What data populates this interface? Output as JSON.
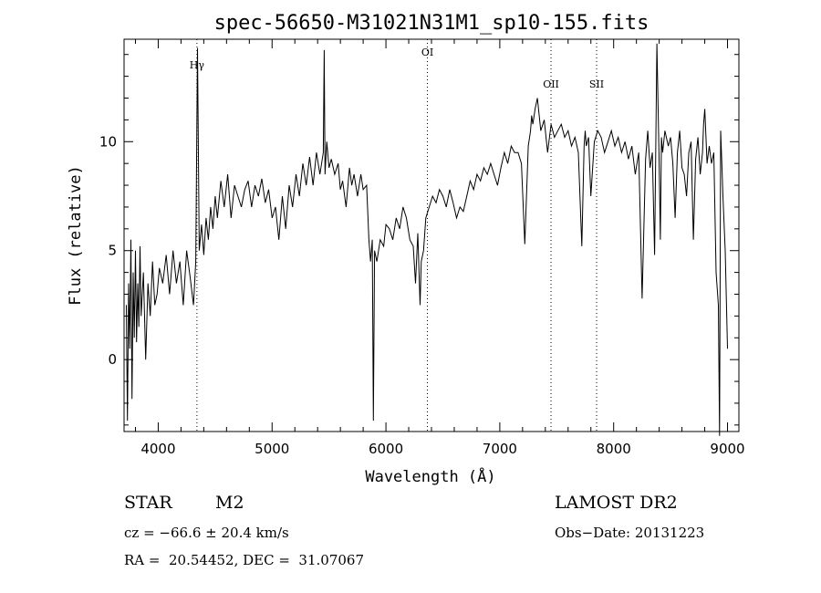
{
  "chart_data": {
    "type": "line",
    "title": "spec-56650-M31021N31M1_sp10-155.fits",
    "xlabel": "Wavelength (Å)",
    "ylabel": "Flux (relative)",
    "xlim": [
      3700,
      9100
    ],
    "ylim": [
      -3.3,
      14.7
    ],
    "xticks": [
      4000,
      5000,
      6000,
      7000,
      8000,
      9000
    ],
    "yticks": [
      0,
      5,
      10
    ],
    "grid": false,
    "line_color": "#000000",
    "lines": [
      {
        "name": "Hγ",
        "x": 4340
      },
      {
        "name": "OI",
        "x": 6364
      },
      {
        "name": "OII",
        "x": 7450
      },
      {
        "name": "SII",
        "x": 7850
      }
    ],
    "series": [
      {
        "x": [
          3720,
          3730,
          3740,
          3750,
          3760,
          3770,
          3780,
          3790,
          3800,
          3810,
          3820,
          3830,
          3840,
          3850,
          3870,
          3890,
          3910,
          3930,
          3950,
          3970,
          3990,
          4010,
          4040,
          4070,
          4100,
          4130,
          4160,
          4190,
          4220,
          4250,
          4280,
          4310,
          4330,
          4345,
          4360,
          4380,
          4400,
          4420,
          4440,
          4460,
          4480,
          4500,
          4520,
          4550,
          4580,
          4610,
          4640,
          4670,
          4700,
          4730,
          4760,
          4790,
          4820,
          4850,
          4880,
          4910,
          4940,
          4970,
          5000,
          5030,
          5060,
          5090,
          5120,
          5150,
          5180,
          5210,
          5240,
          5270,
          5300,
          5330,
          5360,
          5390,
          5420,
          5450,
          5458,
          5465,
          5480,
          5500,
          5520,
          5550,
          5580,
          5600,
          5620,
          5650,
          5680,
          5700,
          5720,
          5750,
          5780,
          5800,
          5830,
          5850,
          5865,
          5880,
          5890,
          5900,
          5920,
          5950,
          5980,
          6000,
          6030,
          6060,
          6090,
          6120,
          6150,
          6180,
          6210,
          6240,
          6260,
          6280,
          6300,
          6310,
          6330,
          6350,
          6380,
          6410,
          6440,
          6470,
          6500,
          6530,
          6560,
          6590,
          6620,
          6650,
          6680,
          6710,
          6740,
          6770,
          6800,
          6830,
          6860,
          6890,
          6920,
          6950,
          6980,
          7010,
          7040,
          7070,
          7100,
          7130,
          7160,
          7190,
          7220,
          7250,
          7270,
          7280,
          7290,
          7310,
          7330,
          7360,
          7390,
          7420,
          7450,
          7480,
          7510,
          7540,
          7570,
          7600,
          7630,
          7660,
          7690,
          7720,
          7740,
          7750,
          7760,
          7780,
          7800,
          7830,
          7860,
          7890,
          7920,
          7950,
          7980,
          8010,
          8040,
          8070,
          8100,
          8130,
          8160,
          8190,
          8220,
          8250,
          8280,
          8300,
          8320,
          8340,
          8360,
          8380,
          8400,
          8410,
          8420,
          8430,
          8450,
          8480,
          8500,
          8520,
          8540,
          8560,
          8580,
          8600,
          8620,
          8640,
          8660,
          8680,
          8700,
          8720,
          8740,
          8760,
          8780,
          8790,
          8800,
          8820,
          8840,
          8860,
          8880,
          8900,
          8920,
          8930,
          8940,
          8950,
          8960,
          8980,
          9000
        ],
        "y": [
          2.5,
          -2.8,
          3.5,
          0.5,
          5.5,
          -1.8,
          4.0,
          1.0,
          5.0,
          0.8,
          3.5,
          1.5,
          5.2,
          2.0,
          4.0,
          0.0,
          3.5,
          2.0,
          4.5,
          2.5,
          3.0,
          4.2,
          3.5,
          4.8,
          3.0,
          5.0,
          3.5,
          4.5,
          2.5,
          5.0,
          3.8,
          2.5,
          4.5,
          14.3,
          5.0,
          6.2,
          4.8,
          6.5,
          5.5,
          7.0,
          6.0,
          7.5,
          6.5,
          8.2,
          7.0,
          8.5,
          6.5,
          8.0,
          7.5,
          7.0,
          7.8,
          8.2,
          7.0,
          8.0,
          7.5,
          8.3,
          7.2,
          7.8,
          6.5,
          7.0,
          5.5,
          7.5,
          6.0,
          8.0,
          7.0,
          8.5,
          7.5,
          9.0,
          8.0,
          9.3,
          8.0,
          9.5,
          8.5,
          9.5,
          14.2,
          8.5,
          10.0,
          8.8,
          9.2,
          8.5,
          9.0,
          7.8,
          8.2,
          7.0,
          8.8,
          8.0,
          8.5,
          7.5,
          8.5,
          7.8,
          8.0,
          5.5,
          4.5,
          5.5,
          -2.8,
          5.0,
          4.5,
          5.5,
          5.2,
          6.2,
          6.0,
          5.5,
          6.5,
          6.0,
          7.0,
          6.5,
          5.5,
          5.2,
          3.5,
          5.8,
          2.5,
          4.5,
          5.0,
          6.5,
          7.0,
          7.5,
          7.2,
          7.8,
          7.5,
          7.0,
          7.8,
          7.2,
          6.5,
          7.0,
          6.8,
          7.5,
          8.2,
          7.8,
          8.5,
          8.2,
          8.8,
          8.5,
          9.0,
          8.5,
          8.0,
          8.8,
          9.5,
          9.0,
          9.8,
          9.5,
          9.5,
          9.0,
          5.3,
          9.8,
          10.5,
          11.2,
          10.8,
          11.5,
          12.0,
          10.5,
          11.0,
          9.5,
          10.8,
          10.2,
          10.5,
          10.8,
          10.2,
          10.5,
          9.8,
          10.2,
          9.5,
          5.2,
          9.8,
          10.5,
          9.8,
          10.2,
          7.5,
          10.0,
          10.5,
          10.2,
          9.5,
          10.0,
          10.5,
          9.8,
          10.2,
          9.5,
          10.0,
          9.2,
          9.8,
          8.5,
          9.5,
          2.8,
          9.2,
          10.5,
          8.8,
          9.5,
          4.8,
          14.5,
          9.0,
          5.5,
          10.2,
          9.5,
          10.5,
          9.8,
          10.2,
          9.0,
          6.5,
          9.5,
          10.5,
          8.8,
          8.5,
          7.5,
          9.5,
          10.0,
          5.5,
          9.2,
          10.2,
          8.5,
          9.5,
          10.8,
          11.5,
          9.0,
          9.8,
          9.0,
          9.5,
          4.0,
          2.5,
          -3.5,
          10.5,
          9.0,
          7.5,
          5.0,
          0.5
        ]
      }
    ]
  },
  "info": {
    "object_class": "STAR",
    "subclass": "M2",
    "survey": "LAMOST DR2",
    "redshift": "cz = −66.6 ± 20.4 km/s",
    "obs_date": "Obs−Date: 20131223",
    "coords": "RA =  20.54452, DEC =  31.07067"
  }
}
